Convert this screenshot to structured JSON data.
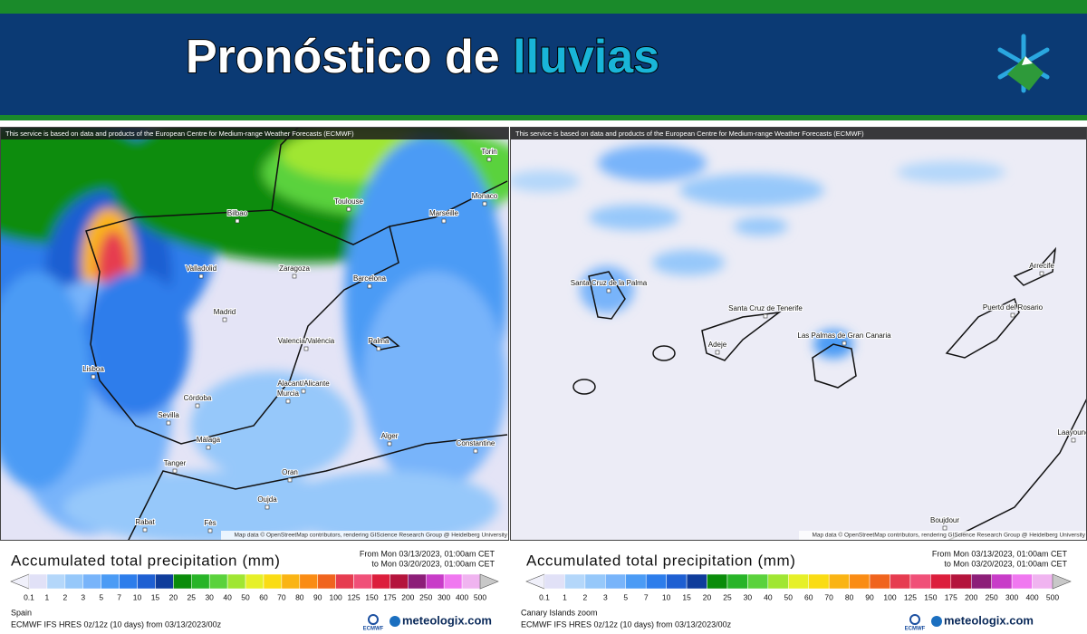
{
  "header": {
    "title_start": "Pronóstico de",
    "title_highlight": "lluvias"
  },
  "attribution_top": "This service is based on data and products of the European Centre for Medium-range Weather Forecasts (ECMWF)",
  "attribution_map": "Map data © OpenStreetMap contributors, rendering GIScience Research Group @ Heidelberg University",
  "legend": {
    "title": "Accumulated total precipitation (mm)",
    "from": "From Mon 03/13/2023, 01:00am CET",
    "to": "to Mon 03/20/2023, 01:00am CET",
    "levels": [
      "0.1",
      "1",
      "2",
      "3",
      "5",
      "7",
      "10",
      "15",
      "20",
      "25",
      "30",
      "40",
      "50",
      "60",
      "70",
      "80",
      "90",
      "100",
      "125",
      "150",
      "175",
      "200",
      "250",
      "300",
      "400",
      "500"
    ],
    "colors": [
      "#e1e1f7",
      "#b4d7fa",
      "#96c8fa",
      "#78b4fa",
      "#4b9bf5",
      "#2d7deb",
      "#1e5fd2",
      "#0f3c9b",
      "#0a8c0a",
      "#28b428",
      "#5ad23c",
      "#a0e632",
      "#e6f028",
      "#fadc14",
      "#fab414",
      "#fa8c14",
      "#f0641e",
      "#e63c50",
      "#f05078",
      "#dc1e3c",
      "#b4143c",
      "#8c1e78",
      "#c83cc8",
      "#f078f0",
      "#f0b4f0"
    ],
    "left_arrow_color": "#f0f0fa",
    "right_arrow_color": "#c8c8c8",
    "model": "ECMWF IFS HRES 0z/12z (10 days) from 03/13/2023/00z",
    "provider": "ECMWF",
    "brand": "meteologix.com"
  },
  "panels": [
    {
      "region": "Spain",
      "cities": [
        "Bilbao",
        "Toulouse",
        "Marseille",
        "Monaco",
        "Torin",
        "Valladolid",
        "Zaragoza",
        "Barcelona",
        "Madrid",
        "Valencia/València",
        "Palma",
        "Lisboa",
        "Alacant/Alicante",
        "Murcia",
        "Córdoba",
        "Sevilla",
        "Málaga",
        "Alger",
        "Tanger",
        "Oran",
        "Oujda",
        "Rabat",
        "Fès",
        "Constantine"
      ]
    },
    {
      "region": "Canary Islands zoom",
      "cities": [
        "Santa Cruz de la Palma",
        "Santa Cruz de Tenerife",
        "Adeje",
        "Las Palmas de Gran Canaria",
        "Puerto del Rosario",
        "Arrecife",
        "Laayoune",
        "Boujdour"
      ]
    }
  ]
}
